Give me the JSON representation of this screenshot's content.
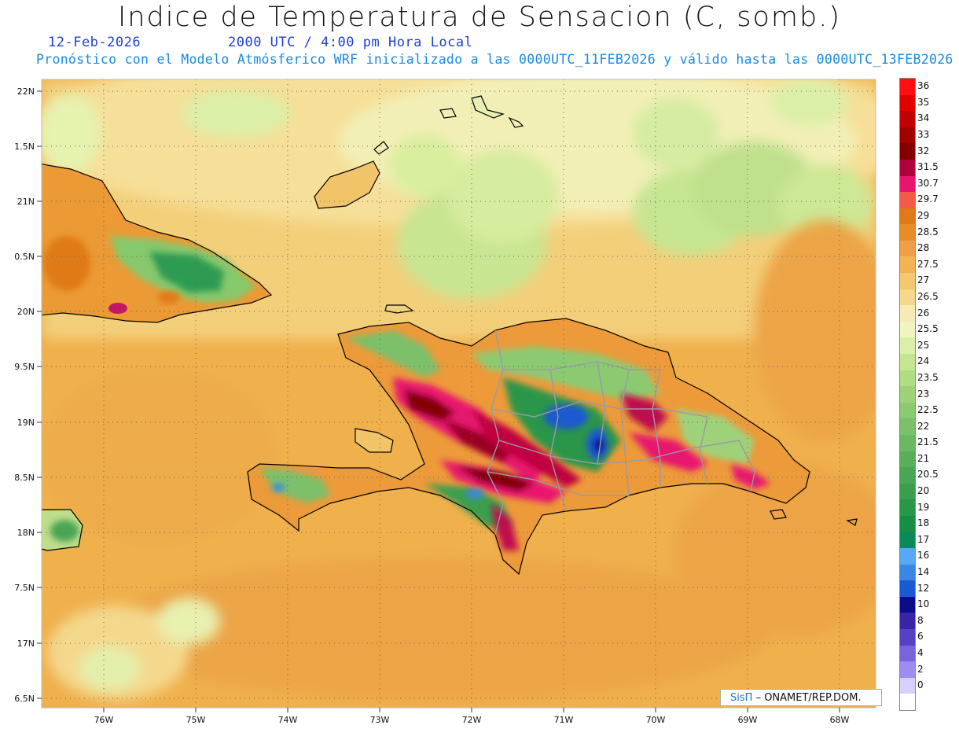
{
  "title": "Indice de Temperatura de Sensacion (C, somb.)",
  "date": "12-Feb-2026",
  "time": "2000 UTC / 4:00 pm Hora Local",
  "subtitle": "Pronóstico con el Modelo Atmósferico WRF inicializado a las 0000UTC_11FEB2026 y válido hasta las  0000UTC_13FEB2026",
  "credit": {
    "brand": "SisΠ",
    "text": "– ONAMET/REP.DOM."
  },
  "lat_ticks": [
    "22N",
    "1.5N",
    "21N",
    "0.5N",
    "20N",
    "9.5N",
    "19N",
    "8.5N",
    "18N",
    "7.5N",
    "17N",
    "6.5N"
  ],
  "lon_ticks": [
    "76W",
    "75W",
    "74W",
    "73W",
    "72W",
    "71W",
    "70W",
    "69W",
    "68W"
  ],
  "legend": [
    {
      "label": "36",
      "color": "#ff1010"
    },
    {
      "label": "35",
      "color": "#e00000"
    },
    {
      "label": "34",
      "color": "#c00000"
    },
    {
      "label": "33",
      "color": "#a00000"
    },
    {
      "label": "32",
      "color": "#820000"
    },
    {
      "label": "31.5",
      "color": "#b0003c"
    },
    {
      "label": "30.7",
      "color": "#e8146e"
    },
    {
      "label": "29.7",
      "color": "#f25a4a"
    },
    {
      "label": "29",
      "color": "#e07a16"
    },
    {
      "label": "28.5",
      "color": "#e88c2a"
    },
    {
      "label": "28",
      "color": "#eea048"
    },
    {
      "label": "27.5",
      "color": "#f2b452"
    },
    {
      "label": "27",
      "color": "#f4c86c"
    },
    {
      "label": "26.5",
      "color": "#f6d88c"
    },
    {
      "label": "26",
      "color": "#f8eab6"
    },
    {
      "label": "25.5",
      "color": "#f0f4c2"
    },
    {
      "label": "25",
      "color": "#dcefa8"
    },
    {
      "label": "24",
      "color": "#c6e592"
    },
    {
      "label": "23.5",
      "color": "#b2dc84"
    },
    {
      "label": "23",
      "color": "#9ed27a"
    },
    {
      "label": "22.5",
      "color": "#8cca72"
    },
    {
      "label": "22",
      "color": "#7cc06a"
    },
    {
      "label": "21.5",
      "color": "#6ab862"
    },
    {
      "label": "21",
      "color": "#5aae5a"
    },
    {
      "label": "20.5",
      "color": "#4aa654"
    },
    {
      "label": "20",
      "color": "#3a9e4e"
    },
    {
      "label": "19",
      "color": "#2a9648"
    },
    {
      "label": "18",
      "color": "#168e44"
    },
    {
      "label": "17",
      "color": "#0a8a5a"
    },
    {
      "label": "16",
      "color": "#58a8f4"
    },
    {
      "label": "14",
      "color": "#3a86e4"
    },
    {
      "label": "12",
      "color": "#1a5ad0"
    },
    {
      "label": "10",
      "color": "#0c0c8a"
    },
    {
      "label": "8",
      "color": "#3a24a6"
    },
    {
      "label": "6",
      "color": "#5840c4"
    },
    {
      "label": "4",
      "color": "#7a64dc"
    },
    {
      "label": "2",
      "color": "#a08cf0"
    },
    {
      "label": "0",
      "color": "#d6d0fa"
    },
    {
      "label": "",
      "color": "#ffffff"
    }
  ]
}
